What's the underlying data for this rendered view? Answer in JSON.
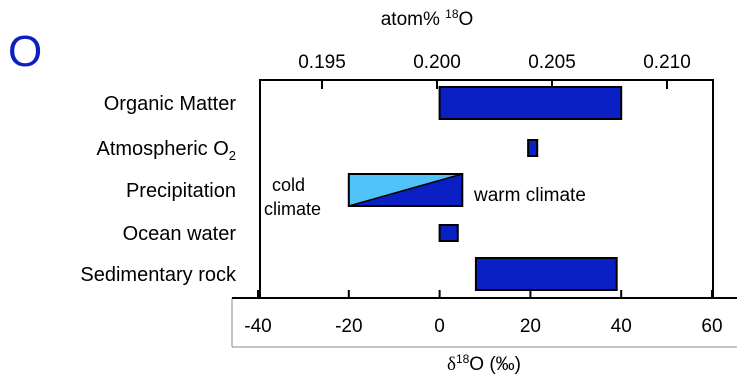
{
  "chart_data": {
    "type": "bar",
    "element_symbol": "O",
    "top_axis": {
      "label_main": "atom% ",
      "label_sup": "18",
      "label_tail": "O",
      "ticks": [
        0.195,
        0.2,
        0.205,
        0.21
      ],
      "tick_labels": [
        "0.195",
        "0.200",
        "0.205",
        "0.210"
      ]
    },
    "bottom_axis": {
      "label_symbol": "δ",
      "label_sup": "18",
      "label_tail": "O (‰)",
      "ticks": [
        -40,
        -20,
        0,
        20,
        40,
        60
      ],
      "tick_labels": [
        "-40",
        "-20",
        "0",
        "20",
        "40",
        "60"
      ],
      "xlim": [
        -40,
        60
      ]
    },
    "categories": [
      {
        "label": "Organic Matter",
        "sub": "",
        "range": [
          0,
          40
        ]
      },
      {
        "label": "Atmospheric O",
        "sub": "2",
        "range": [
          19.5,
          21.5
        ]
      },
      {
        "label": "Precipitation",
        "sub": "",
        "range": [
          -20,
          5
        ],
        "gradient": true
      },
      {
        "label": "Ocean water",
        "sub": "",
        "range": [
          0,
          4
        ]
      },
      {
        "label": "Sedimentary rock",
        "sub": "",
        "range": [
          8,
          39
        ]
      }
    ],
    "annotations": {
      "cold_line1": "cold",
      "cold_line2": "climate",
      "warm": "warm climate"
    },
    "colors": {
      "bar": "#0a1fc4",
      "bar_dark": "#071a9e",
      "cold": "#4fc3f7",
      "axis": "#000000"
    }
  }
}
